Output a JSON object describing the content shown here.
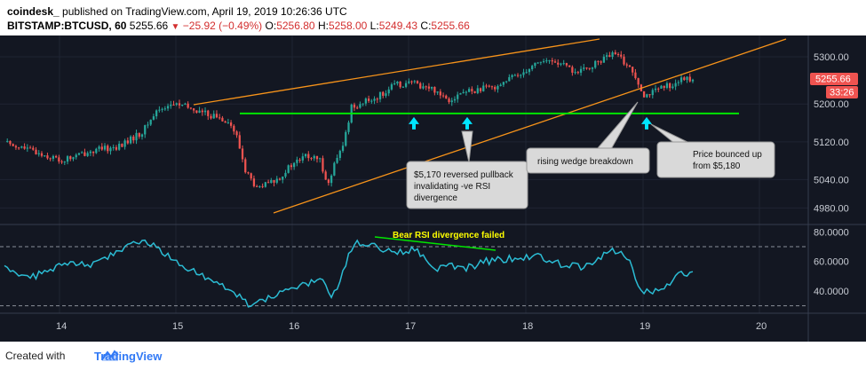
{
  "header": {
    "brand": "coindesk_",
    "published": "published on TradingView.com, April 19, 2019 10:26:36 UTC",
    "symbol": "BITSTAMP:BTCUSD, 60",
    "last": "5255.66",
    "change": "−25.92 (−0.49%)",
    "open_label": "O:",
    "open": "5256.80",
    "high_label": "H:",
    "high": "5258.00",
    "low_label": "L:",
    "low": "5249.43",
    "close_label": "C:",
    "close": "5255.66"
  },
  "footer": {
    "created": "Created with",
    "tv": "TradingView"
  },
  "colors": {
    "background": "#131722",
    "up": "#26a69a",
    "down": "#ef5350",
    "wedge": "#f7931a",
    "support": "#00e600",
    "rsi": "#2bbcd4",
    "arrow": "#00e5ff",
    "price_badge": "#ef5350"
  },
  "chart_data": {
    "type": "candlestick",
    "price_axis": {
      "ticks": [
        "5300.00",
        "5200.00",
        "5120.00",
        "5040.00",
        "4980.00"
      ],
      "ylim": [
        4945,
        5345
      ]
    },
    "last_price_label": "5255.66",
    "countdown_label": "33:26",
    "x_ticks": [
      "14",
      "15",
      "16",
      "17",
      "18",
      "19",
      "20"
    ],
    "rsi_axis": {
      "ticks": [
        "80.0000",
        "60.0000",
        "40.0000"
      ],
      "ylim": [
        25,
        85
      ],
      "bands": [
        70,
        30
      ]
    },
    "support_level": 5180,
    "annotations": [
      {
        "text": [
          "$5,170 reversed pullback",
          "invalidating -ve RSI",
          "divergence"
        ]
      },
      {
        "text": [
          "rising wedge breakdown"
        ]
      },
      {
        "text": [
          "Price bounced up",
          "from $5,180"
        ]
      },
      {
        "text": [
          "Bear RSI divergence failed"
        ]
      }
    ],
    "price_anchors": [
      [
        0,
        5120
      ],
      [
        10,
        5100
      ],
      [
        20,
        5080
      ],
      [
        30,
        5100
      ],
      [
        40,
        5110
      ],
      [
        48,
        5140
      ],
      [
        53,
        5185
      ],
      [
        56,
        5195
      ],
      [
        60,
        5200
      ],
      [
        70,
        5180
      ],
      [
        78,
        5165
      ],
      [
        81,
        5130
      ],
      [
        84,
        5060
      ],
      [
        88,
        5020
      ],
      [
        95,
        5040
      ],
      [
        100,
        5070
      ],
      [
        105,
        5090
      ],
      [
        110,
        5080
      ],
      [
        113,
        5030
      ],
      [
        115,
        5070
      ],
      [
        118,
        5110
      ],
      [
        121,
        5195
      ],
      [
        124,
        5200
      ],
      [
        130,
        5215
      ],
      [
        136,
        5240
      ],
      [
        142,
        5245
      ],
      [
        150,
        5230
      ],
      [
        155,
        5210
      ],
      [
        160,
        5225
      ],
      [
        170,
        5235
      ],
      [
        180,
        5265
      ],
      [
        186,
        5290
      ],
      [
        192,
        5290
      ],
      [
        200,
        5265
      ],
      [
        206,
        5285
      ],
      [
        210,
        5300
      ],
      [
        213,
        5305
      ],
      [
        216,
        5290
      ],
      [
        220,
        5260
      ],
      [
        223,
        5220
      ],
      [
        226,
        5225
      ],
      [
        232,
        5240
      ],
      [
        236,
        5250
      ],
      [
        240,
        5256
      ]
    ],
    "rsi_anchors": [
      [
        0,
        55
      ],
      [
        8,
        48
      ],
      [
        16,
        55
      ],
      [
        24,
        60
      ],
      [
        32,
        58
      ],
      [
        40,
        68
      ],
      [
        46,
        72
      ],
      [
        52,
        72
      ],
      [
        58,
        62
      ],
      [
        64,
        56
      ],
      [
        70,
        50
      ],
      [
        76,
        44
      ],
      [
        80,
        40
      ],
      [
        83,
        34
      ],
      [
        86,
        30
      ],
      [
        92,
        35
      ],
      [
        98,
        40
      ],
      [
        104,
        44
      ],
      [
        110,
        48
      ],
      [
        114,
        38
      ],
      [
        117,
        46
      ],
      [
        120,
        65
      ],
      [
        123,
        72
      ],
      [
        130,
        70
      ],
      [
        136,
        66
      ],
      [
        142,
        68
      ],
      [
        146,
        64
      ],
      [
        150,
        55
      ],
      [
        154,
        58
      ],
      [
        160,
        55
      ],
      [
        168,
        60
      ],
      [
        176,
        62
      ],
      [
        186,
        64
      ],
      [
        194,
        58
      ],
      [
        202,
        56
      ],
      [
        210,
        66
      ],
      [
        214,
        68
      ],
      [
        218,
        60
      ],
      [
        222,
        38
      ],
      [
        226,
        40
      ],
      [
        232,
        45
      ],
      [
        236,
        52
      ],
      [
        240,
        51
      ]
    ]
  }
}
